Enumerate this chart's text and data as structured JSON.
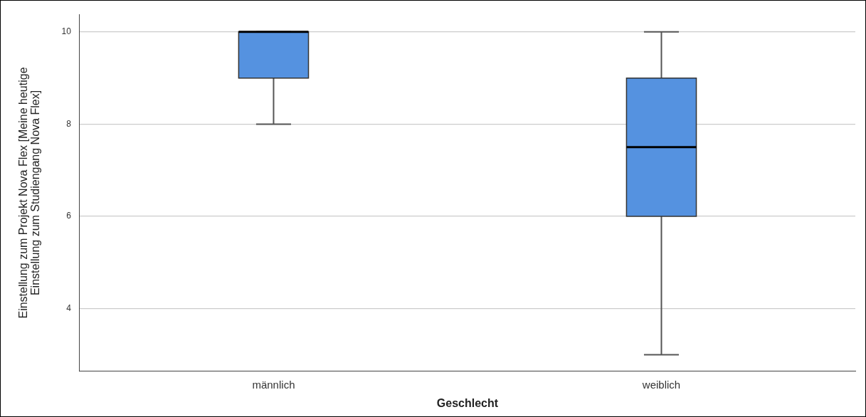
{
  "chart_data": {
    "type": "box",
    "xlabel": "Geschlecht",
    "ylabel": "Einstellung zum Projekt Nova Flex [Meine heutige\nEinstellung zum Studiengang Nova Flex]",
    "categories": [
      "männlich",
      "weiblich"
    ],
    "series": [
      {
        "color": "#5592e0",
        "boxes": [
          {
            "low": 8,
            "q1": 9,
            "median": 10,
            "q3": 10,
            "high": 10
          },
          {
            "low": 3,
            "q1": 6,
            "median": 7.5,
            "q3": 9,
            "high": 10
          }
        ]
      }
    ],
    "ylim": [
      2.64,
      10.38
    ],
    "yticks": [
      4,
      6,
      8,
      10
    ],
    "grid": "y"
  }
}
